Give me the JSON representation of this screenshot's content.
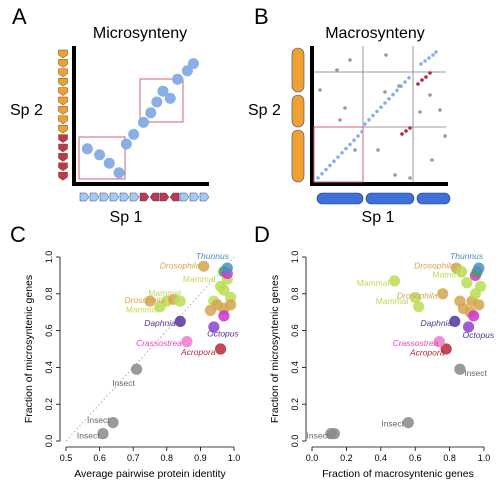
{
  "panels": {
    "a": {
      "letter": "A",
      "title": "Microsynteny",
      "ylabel": "Sp 2",
      "xlabel": "Sp 1"
    },
    "b": {
      "letter": "B",
      "title": "Macrosynteny",
      "ylabel": "Sp 2",
      "xlabel": "Sp 1"
    },
    "c": {
      "letter": "C"
    },
    "d": {
      "letter": "D"
    }
  },
  "colors": {
    "gene_orange": "#F0A030",
    "gene_red": "#C0394B",
    "gene_blue": "#A9C8F0",
    "chrom_blue": "#3F6FD8",
    "dot_blue": "#8AAFE6",
    "dot_red": "#B5283A",
    "dot_grey": "#999999",
    "box_red": "#D26070"
  },
  "schematic_a": {
    "y_genes": [
      "orange",
      "orange",
      "orange",
      "orange",
      "orange",
      "orange",
      "orange",
      "orange",
      "orange",
      "red",
      "red",
      "red",
      "red",
      "red"
    ],
    "x_genes": [
      "blue",
      "blue",
      "blue",
      "blue",
      "blue",
      "blue",
      "red",
      "red",
      "red",
      "red",
      "blue",
      "blue",
      "blue"
    ],
    "dots": [
      [
        0.06,
        0.26
      ],
      [
        0.16,
        0.21
      ],
      [
        0.24,
        0.14
      ],
      [
        0.32,
        0.06
      ],
      [
        0.38,
        0.3
      ],
      [
        0.44,
        0.38
      ],
      [
        0.52,
        0.48
      ],
      [
        0.58,
        0.56
      ],
      [
        0.63,
        0.65
      ],
      [
        0.68,
        0.74
      ],
      [
        0.74,
        0.68
      ],
      [
        0.8,
        0.84
      ],
      [
        0.88,
        0.91
      ],
      [
        0.93,
        0.97
      ]
    ]
  },
  "schematic_b": {
    "y_chromosomes": 3,
    "x_chromosomes": 3
  },
  "chart_data": [
    {
      "type": "scatter",
      "panel": "C",
      "xlabel": "Average pairwise protein identity",
      "ylabel": "Fraction of microsyntenic genes",
      "xlim": [
        0.5,
        1.0
      ],
      "ylim": [
        0.0,
        1.0
      ],
      "xticks": [
        "0.5",
        "0.6",
        "0.7",
        "0.8",
        "0.9",
        "1.0"
      ],
      "yticks": [
        "0.0",
        "0.2",
        "0.4",
        "0.6",
        "0.8",
        "1.0"
      ],
      "diagonal": true,
      "points": [
        {
          "x": 0.61,
          "y": 0.04,
          "color": "#888888"
        },
        {
          "x": 0.64,
          "y": 0.1,
          "color": "#888888"
        },
        {
          "x": 0.71,
          "y": 0.39,
          "color": "#888888"
        },
        {
          "x": 0.75,
          "y": 0.76,
          "color": "#D4A44F"
        },
        {
          "x": 0.78,
          "y": 0.73,
          "color": "#BBDD55"
        },
        {
          "x": 0.8,
          "y": 0.76,
          "color": "#BBDD55"
        },
        {
          "x": 0.82,
          "y": 0.77,
          "color": "#D4A44F"
        },
        {
          "x": 0.84,
          "y": 0.76,
          "color": "#BBDD55"
        },
        {
          "x": 0.84,
          "y": 0.65,
          "color": "#553399"
        },
        {
          "x": 0.86,
          "y": 0.54,
          "color": "#EE7ACB"
        },
        {
          "x": 0.91,
          "y": 0.95,
          "color": "#D4A44F"
        },
        {
          "x": 0.93,
          "y": 0.71,
          "color": "#D4A44F"
        },
        {
          "x": 0.94,
          "y": 0.76,
          "color": "#BBDD55"
        },
        {
          "x": 0.94,
          "y": 0.62,
          "color": "#8E3FCB"
        },
        {
          "x": 0.95,
          "y": 0.74,
          "color": "#D4A44F"
        },
        {
          "x": 0.96,
          "y": 0.5,
          "color": "#B5283A"
        },
        {
          "x": 0.96,
          "y": 0.84,
          "color": "#BBDD55"
        },
        {
          "x": 0.97,
          "y": 0.72,
          "color": "#D4A44F"
        },
        {
          "x": 0.97,
          "y": 0.68,
          "color": "#CC33CC"
        },
        {
          "x": 0.97,
          "y": 0.82,
          "color": "#BBDD55"
        },
        {
          "x": 0.97,
          "y": 0.92,
          "color": "#3FA34D"
        },
        {
          "x": 0.98,
          "y": 0.88,
          "color": "#BBDD55"
        },
        {
          "x": 0.98,
          "y": 0.91,
          "color": "#CC33CC"
        },
        {
          "x": 0.98,
          "y": 0.94,
          "color": "#4A8FC7"
        },
        {
          "x": 0.99,
          "y": 0.78,
          "color": "#BBDD55"
        },
        {
          "x": 0.99,
          "y": 0.74,
          "color": "#D4A44F"
        }
      ],
      "labels": [
        {
          "text": "Thunnus",
          "x": 0.985,
          "y": 1.005,
          "anchor": "end",
          "color": "#3F8FC7",
          "italic": true
        },
        {
          "text": "Drosophila",
          "x": 0.9,
          "y": 0.955,
          "anchor": "end",
          "color": "#D4A44F",
          "italic": true
        },
        {
          "text": "Mammal",
          "x": 0.945,
          "y": 0.88,
          "anchor": "end",
          "color": "#BBDD55",
          "italic": false
        },
        {
          "text": "Mammal",
          "x": 0.842,
          "y": 0.805,
          "anchor": "end",
          "color": "#BBDD55",
          "italic": false
        },
        {
          "text": "Drosophila",
          "x": 0.795,
          "y": 0.765,
          "anchor": "end",
          "color": "#D4A44F",
          "italic": true
        },
        {
          "text": "Mammal",
          "x": 0.775,
          "y": 0.715,
          "anchor": "end",
          "color": "#BBDD55",
          "italic": false
        },
        {
          "text": "Daphnia",
          "x": 0.827,
          "y": 0.642,
          "anchor": "end",
          "color": "#553399",
          "italic": true
        },
        {
          "text": "Octopus",
          "x": 0.92,
          "y": 0.585,
          "anchor": "start",
          "color": "#553399",
          "italic": true
        },
        {
          "text": "Crassostrea",
          "x": 0.845,
          "y": 0.532,
          "anchor": "end",
          "color": "#EE44BB",
          "italic": true
        },
        {
          "text": "Acropora",
          "x": 0.945,
          "y": 0.485,
          "anchor": "end",
          "color": "#B5283A",
          "italic": true
        },
        {
          "text": "Insect",
          "x": 0.705,
          "y": 0.315,
          "anchor": "end",
          "color": "#666666",
          "italic": false
        },
        {
          "text": "Insect",
          "x": 0.63,
          "y": 0.115,
          "anchor": "end",
          "color": "#666666",
          "italic": false
        },
        {
          "text": "Insect",
          "x": 0.6,
          "y": 0.03,
          "anchor": "end",
          "color": "#666666",
          "italic": false
        }
      ]
    },
    {
      "type": "scatter",
      "panel": "D",
      "xlabel": "Fraction of macrosyntenic genes",
      "ylabel": "Fraction of microsyntenic genes",
      "xlim": [
        0.0,
        1.0
      ],
      "ylim": [
        0.0,
        1.0
      ],
      "xticks": [
        "0.0",
        "0.2",
        "0.4",
        "0.6",
        "0.8",
        "1.0"
      ],
      "yticks": [
        "0.0",
        "0.2",
        "0.4",
        "0.6",
        "0.8",
        "1.0"
      ],
      "diagonal": false,
      "points": [
        {
          "x": 0.11,
          "y": 0.04,
          "color": "#888888"
        },
        {
          "x": 0.13,
          "y": 0.04,
          "color": "#888888"
        },
        {
          "x": 0.56,
          "y": 0.1,
          "color": "#888888"
        },
        {
          "x": 0.86,
          "y": 0.39,
          "color": "#888888"
        },
        {
          "x": 0.48,
          "y": 0.87,
          "color": "#BBDD55"
        },
        {
          "x": 0.6,
          "y": 0.78,
          "color": "#BBDD55"
        },
        {
          "x": 0.62,
          "y": 0.73,
          "color": "#BBDD55"
        },
        {
          "x": 0.76,
          "y": 0.8,
          "color": "#D4A44F"
        },
        {
          "x": 0.78,
          "y": 0.5,
          "color": "#B5283A"
        },
        {
          "x": 0.74,
          "y": 0.54,
          "color": "#EE7ACB"
        },
        {
          "x": 0.83,
          "y": 0.65,
          "color": "#553399"
        },
        {
          "x": 0.84,
          "y": 0.94,
          "color": "#D4A44F"
        },
        {
          "x": 0.86,
          "y": 0.76,
          "color": "#D4A44F"
        },
        {
          "x": 0.87,
          "y": 0.92,
          "color": "#BBDD55"
        },
        {
          "x": 0.88,
          "y": 0.72,
          "color": "#D4A44F"
        },
        {
          "x": 0.9,
          "y": 0.86,
          "color": "#BBDD55"
        },
        {
          "x": 0.91,
          "y": 0.62,
          "color": "#8E3FCB"
        },
        {
          "x": 0.92,
          "y": 0.7,
          "color": "#D4A44F"
        },
        {
          "x": 0.93,
          "y": 0.76,
          "color": "#D4A44F"
        },
        {
          "x": 0.94,
          "y": 0.68,
          "color": "#CC33CC"
        },
        {
          "x": 0.95,
          "y": 0.8,
          "color": "#BBDD55"
        },
        {
          "x": 0.95,
          "y": 0.9,
          "color": "#CC33CC"
        },
        {
          "x": 0.96,
          "y": 0.92,
          "color": "#3FA34D"
        },
        {
          "x": 0.97,
          "y": 0.94,
          "color": "#4A8FC7"
        },
        {
          "x": 0.97,
          "y": 0.74,
          "color": "#D4A44F"
        },
        {
          "x": 0.98,
          "y": 0.84,
          "color": "#BBDD55"
        }
      ],
      "labels": [
        {
          "text": "Thunnus",
          "x": 0.995,
          "y": 1.005,
          "anchor": "end",
          "color": "#3F8FC7",
          "italic": true
        },
        {
          "text": "Drosophila",
          "x": 0.83,
          "y": 0.955,
          "anchor": "end",
          "color": "#D4A44F",
          "italic": true
        },
        {
          "text": "Mammal",
          "x": 0.89,
          "y": 0.905,
          "anchor": "end",
          "color": "#BBDD55",
          "italic": false
        },
        {
          "text": "Mammal",
          "x": 0.45,
          "y": 0.86,
          "anchor": "end",
          "color": "#BBDD55",
          "italic": false
        },
        {
          "text": "Drosophila",
          "x": 0.73,
          "y": 0.79,
          "anchor": "end",
          "color": "#D4A44F",
          "italic": true
        },
        {
          "text": "Mammal",
          "x": 0.56,
          "y": 0.76,
          "anchor": "end",
          "color": "#BBDD55",
          "italic": false
        },
        {
          "text": "Daphnia",
          "x": 0.815,
          "y": 0.642,
          "anchor": "end",
          "color": "#553399",
          "italic": true
        },
        {
          "text": "Octopus",
          "x": 0.875,
          "y": 0.575,
          "anchor": "start",
          "color": "#553399",
          "italic": true
        },
        {
          "text": "Crassostrea",
          "x": 0.735,
          "y": 0.532,
          "anchor": "end",
          "color": "#EE44BB",
          "italic": true
        },
        {
          "text": "Acropora",
          "x": 0.77,
          "y": 0.482,
          "anchor": "end",
          "color": "#B5283A",
          "italic": true
        },
        {
          "text": "Insect",
          "x": 0.885,
          "y": 0.37,
          "anchor": "start",
          "color": "#666666",
          "italic": false
        },
        {
          "text": "Insect",
          "x": 0.535,
          "y": 0.095,
          "anchor": "end",
          "color": "#666666",
          "italic": false
        },
        {
          "text": "Insect",
          "x": 0.1,
          "y": 0.03,
          "anchor": "end",
          "color": "#666666",
          "italic": false
        }
      ]
    }
  ]
}
